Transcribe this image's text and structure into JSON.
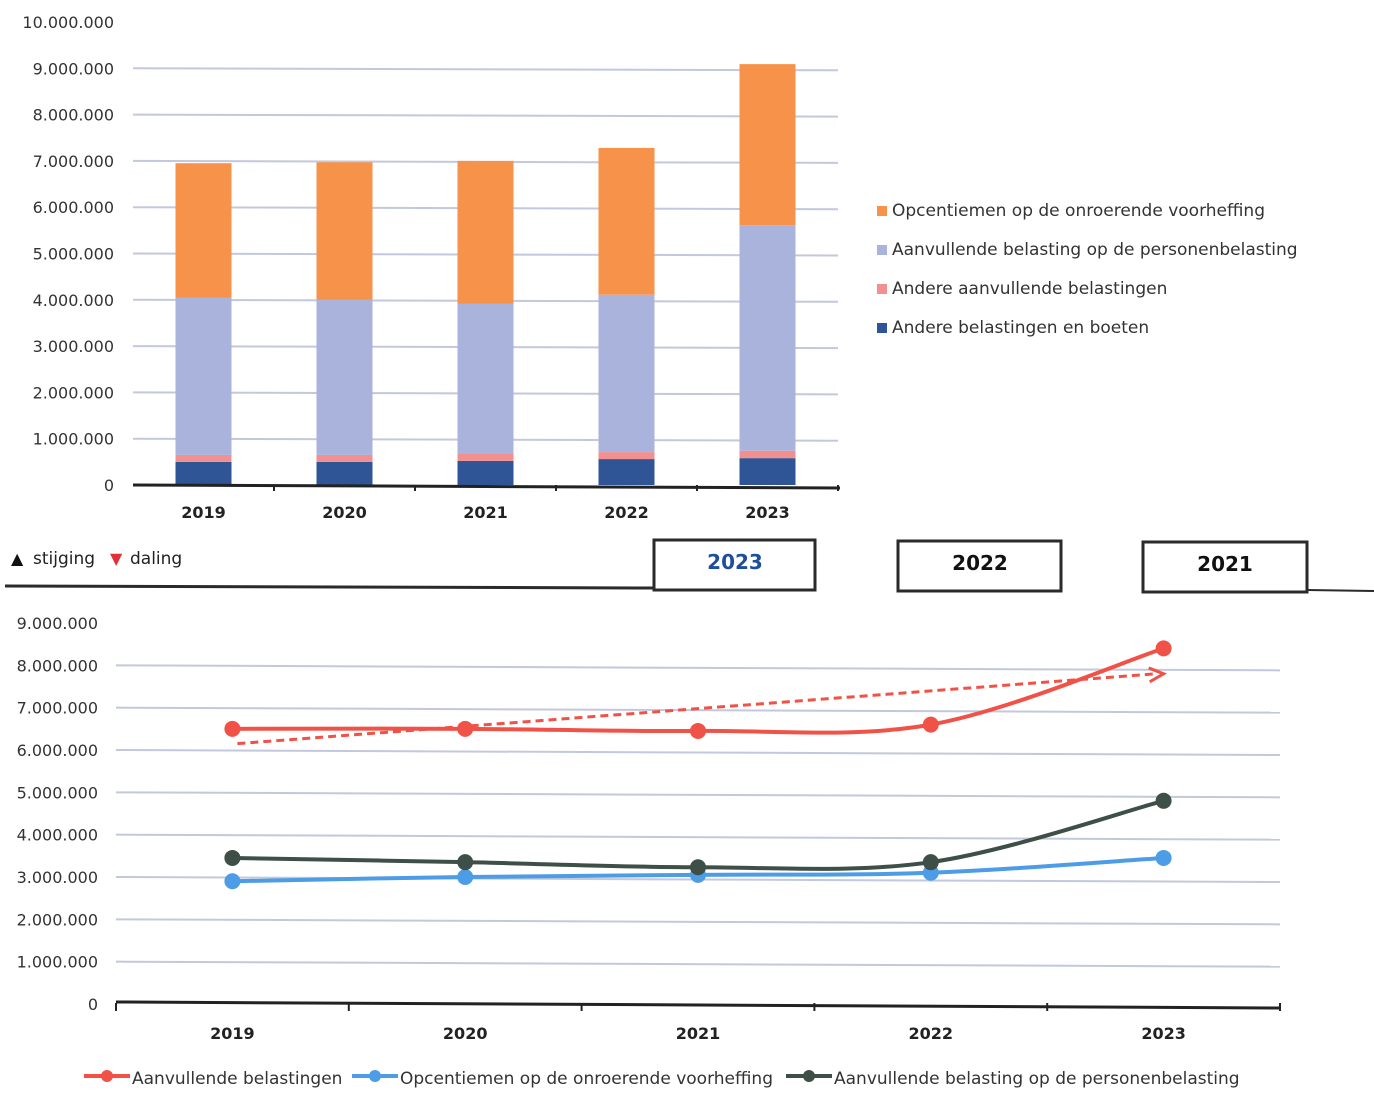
{
  "colors": {
    "orange": "#f7924a",
    "lavender": "#a9b3dc",
    "pink": "#f28f8f",
    "navy": "#2f5597",
    "red": "#f05248",
    "blue": "#4d9ce6",
    "dark": "#3d4f47",
    "grid": "#c3c8dc",
    "box_blue_text": "#1f4e9a"
  },
  "indicator": {
    "up_symbol": "▲",
    "up_label": "stijging",
    "down_symbol": "▼",
    "down_label": "daling"
  },
  "year_boxes": [
    "2023",
    "2022",
    "2021"
  ],
  "chart_data": [
    {
      "type": "bar",
      "stacked": true,
      "categories": [
        "2019",
        "2020",
        "2021",
        "2022",
        "2023"
      ],
      "ylim": [
        0,
        10000000
      ],
      "yticks": [
        "0",
        "1.000.000",
        "2.000.000",
        "3.000.000",
        "4.000.000",
        "5.000.000",
        "6.000.000",
        "7.000.000",
        "8.000.000",
        "9.000.000",
        "10.000.000"
      ],
      "grid": true,
      "legend_position": "right",
      "series": [
        {
          "name": "Andere belastingen en boeten",
          "color_key": "navy",
          "values": [
            500000,
            500000,
            520000,
            560000,
            580000
          ]
        },
        {
          "name": "Andere aanvullende belastingen",
          "color_key": "pink",
          "values": [
            150000,
            150000,
            150000,
            150000,
            160000
          ]
        },
        {
          "name": "Aanvullende belasting op de personenbelasting",
          "color_key": "lavender",
          "values": [
            3400000,
            3350000,
            3250000,
            3400000,
            4870000
          ]
        },
        {
          "name": "Opcentiemen op de onroerende voorheffing",
          "color_key": "orange",
          "values": [
            2900000,
            2970000,
            3080000,
            3170000,
            3480000
          ]
        }
      ],
      "legend_order": [
        "Opcentiemen op de onroerende voorheffing",
        "Aanvullende belasting op de personenbelasting",
        "Andere aanvullende belastingen",
        "Andere belastingen en boeten"
      ]
    },
    {
      "type": "line",
      "categories": [
        "2019",
        "2020",
        "2021",
        "2022",
        "2023"
      ],
      "ylim": [
        0,
        9000000
      ],
      "yticks": [
        "0",
        "1.000.000",
        "2.000.000",
        "3.000.000",
        "4.000.000",
        "5.000.000",
        "6.000.000",
        "7.000.000",
        "8.000.000",
        "9.000.000"
      ],
      "grid": true,
      "legend_position": "bottom",
      "series": [
        {
          "name": "Aanvullende belastingen",
          "color_key": "red",
          "values": [
            6500000,
            6500000,
            6450000,
            6600000,
            8400000
          ]
        },
        {
          "name": "Opcentiemen op de onroerende voorheffing",
          "color_key": "blue",
          "values": [
            2900000,
            3000000,
            3050000,
            3100000,
            3450000
          ]
        },
        {
          "name": "Aanvullende belasting op de personenbelasting",
          "color_key": "dark",
          "values": [
            3450000,
            3350000,
            3230000,
            3350000,
            4800000
          ]
        }
      ],
      "trendline": {
        "series": "Aanvullende belastingen",
        "from": 6150000,
        "to": 7800000
      }
    }
  ]
}
